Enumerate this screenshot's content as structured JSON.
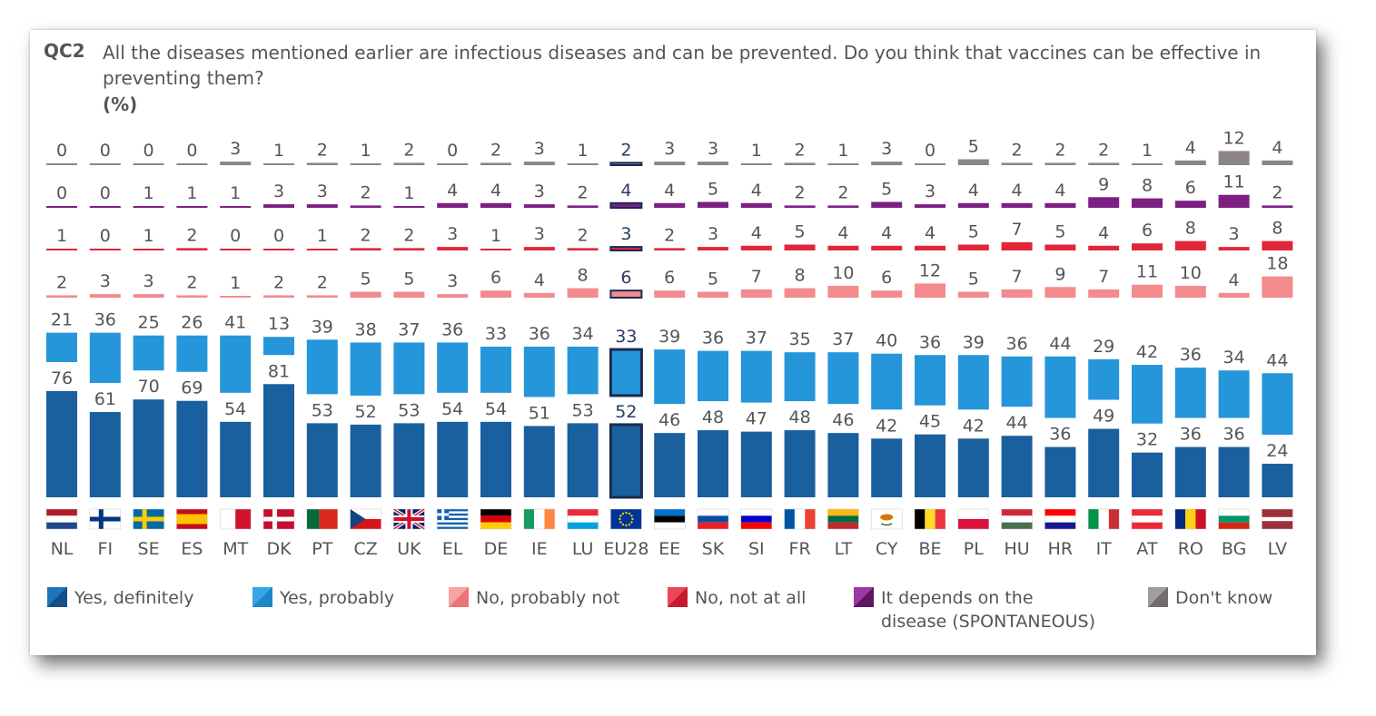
{
  "question": {
    "code": "QC2",
    "text": "All the diseases mentioned earlier are infectious diseases and can be prevented. Do you think that vaccines can be effective in preventing them?",
    "unit": "(%)"
  },
  "chart_data": {
    "type": "bar",
    "categories": [
      "NL",
      "FI",
      "SE",
      "ES",
      "MT",
      "DK",
      "PT",
      "CZ",
      "UK",
      "EL",
      "DE",
      "IE",
      "LU",
      "EU28",
      "EE",
      "SK",
      "SI",
      "FR",
      "LT",
      "CY",
      "BE",
      "PL",
      "HU",
      "HR",
      "IT",
      "AT",
      "RO",
      "BG",
      "LV"
    ],
    "series": [
      {
        "name": "Yes, definitely",
        "color": "#1a5f9e",
        "values": [
          76,
          61,
          70,
          69,
          54,
          81,
          53,
          52,
          53,
          54,
          54,
          51,
          53,
          52,
          46,
          48,
          47,
          48,
          46,
          42,
          45,
          42,
          44,
          36,
          49,
          32,
          36,
          36,
          24
        ]
      },
      {
        "name": "Yes, probably",
        "color": "#2596d9",
        "values": [
          21,
          36,
          25,
          26,
          41,
          13,
          39,
          38,
          37,
          36,
          33,
          36,
          34,
          33,
          39,
          36,
          37,
          35,
          37,
          40,
          36,
          39,
          36,
          44,
          29,
          42,
          36,
          34,
          44
        ]
      },
      {
        "name": "No, probably not",
        "color": "#f38b8e",
        "values": [
          2,
          3,
          3,
          2,
          1,
          2,
          2,
          5,
          5,
          3,
          6,
          4,
          8,
          6,
          6,
          5,
          7,
          8,
          10,
          6,
          12,
          5,
          7,
          9,
          7,
          11,
          10,
          4,
          18
        ]
      },
      {
        "name": "No, not at all",
        "color": "#e0273a",
        "values": [
          1,
          0,
          1,
          2,
          0,
          0,
          1,
          2,
          2,
          3,
          1,
          3,
          2,
          3,
          2,
          3,
          4,
          5,
          4,
          4,
          4,
          5,
          7,
          5,
          4,
          6,
          8,
          3,
          8
        ]
      },
      {
        "name": "It depends on the disease (SPONTANEOUS)",
        "color": "#7d1f82",
        "values": [
          0,
          0,
          1,
          1,
          1,
          3,
          3,
          2,
          1,
          4,
          4,
          3,
          2,
          4,
          4,
          5,
          4,
          2,
          2,
          5,
          3,
          4,
          4,
          4,
          9,
          8,
          6,
          11,
          2
        ]
      },
      {
        "name": "Don't know",
        "color": "#8c8588",
        "values": [
          0,
          0,
          0,
          0,
          3,
          1,
          2,
          1,
          2,
          0,
          2,
          3,
          1,
          2,
          3,
          3,
          1,
          2,
          1,
          3,
          0,
          5,
          2,
          2,
          2,
          1,
          4,
          12,
          4
        ]
      }
    ],
    "highlight": "EU28",
    "flag_icons": [
      "nl-flag-icon",
      "fi-flag-icon",
      "se-flag-icon",
      "es-flag-icon",
      "mt-flag-icon",
      "dk-flag-icon",
      "pt-flag-icon",
      "cz-flag-icon",
      "uk-flag-icon",
      "el-flag-icon",
      "de-flag-icon",
      "ie-flag-icon",
      "lu-flag-icon",
      "eu-flag-icon",
      "ee-flag-icon",
      "sk-flag-icon",
      "si-flag-icon",
      "fr-flag-icon",
      "lt-flag-icon",
      "cy-flag-icon",
      "be-flag-icon",
      "pl-flag-icon",
      "hu-flag-icon",
      "hr-flag-icon",
      "it-flag-icon",
      "at-flag-icon",
      "ro-flag-icon",
      "bg-flag-icon",
      "lv-flag-icon"
    ]
  },
  "legend": [
    {
      "label": "Yes, definitely",
      "color": "#1a5f9e"
    },
    {
      "label": "Yes, probably",
      "color": "#2596d9"
    },
    {
      "label": "No, probably not",
      "color": "#f38b8e"
    },
    {
      "label": "No, not at all",
      "color": "#e0273a"
    },
    {
      "label": "It depends on the",
      "label2": "disease (SPONTANEOUS)",
      "color": "#7d1f82"
    },
    {
      "label": "Don't know",
      "color": "#8c8588"
    }
  ]
}
